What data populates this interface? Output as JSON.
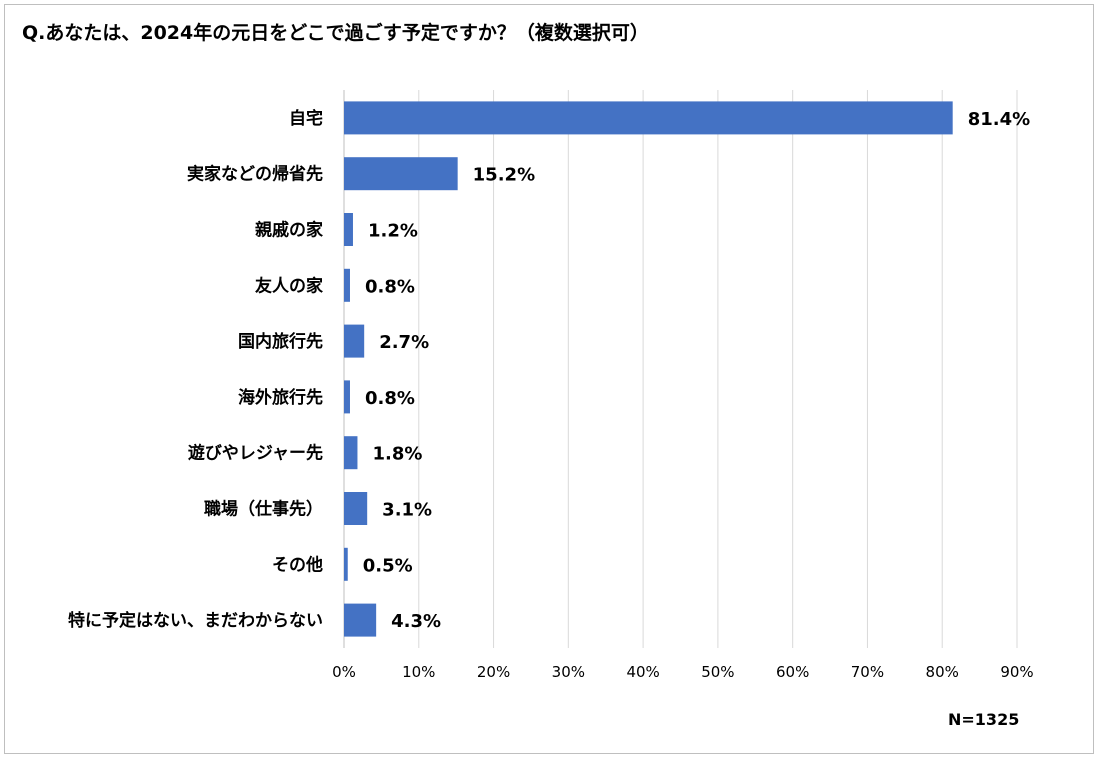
{
  "chart_data": {
    "type": "bar",
    "orientation": "horizontal",
    "title": "Q.あなたは、2024年の元日をどこで過ごす予定ですか？（複数選択可）",
    "categories": [
      "自宅",
      "実家などの帰省先",
      "親戚の家",
      "友人の家",
      "国内旅行先",
      "海外旅行先",
      "遊びやレジャー先",
      "職場（仕事先）",
      "その他",
      "特に予定はない、まだわからない"
    ],
    "values": [
      81.4,
      15.2,
      1.2,
      0.8,
      2.7,
      0.8,
      1.8,
      3.1,
      0.5,
      4.3
    ],
    "value_labels": [
      "81.4%",
      "15.2%",
      "1.2%",
      "0.8%",
      "2.7%",
      "0.8%",
      "1.8%",
      "3.1%",
      "0.5%",
      "4.3%"
    ],
    "xlim": [
      0,
      90
    ],
    "xticks": [
      0,
      10,
      20,
      30,
      40,
      50,
      60,
      70,
      80,
      90
    ],
    "xtick_labels": [
      "0%",
      "10%",
      "20%",
      "30%",
      "40%",
      "50%",
      "60%",
      "70%",
      "80%",
      "90%"
    ],
    "grid": true,
    "legend": "none",
    "bar_color": "#4472C4",
    "grid_color": "#d9d9d9",
    "note": "N=1325"
  }
}
